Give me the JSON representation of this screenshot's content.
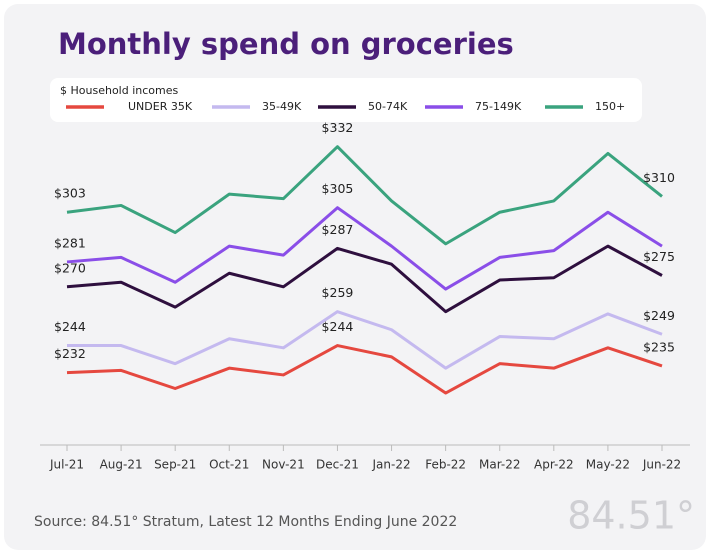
{
  "chart_data": {
    "type": "line",
    "title": "Monthly spend on groceries",
    "legend_title": "$ Household incomes",
    "categories": [
      "Jul-21",
      "Aug-21",
      "Sep-21",
      "Oct-21",
      "Nov-21",
      "Dec-21",
      "Jan-22",
      "Feb-22",
      "Mar-22",
      "Apr-22",
      "May-22",
      "Jun-22"
    ],
    "ylim": [
      200,
      340
    ],
    "series": [
      {
        "name": "UNDER 35K",
        "color": "#e5483f",
        "values": [
          232,
          233,
          225,
          234,
          231,
          244,
          239,
          223,
          236,
          234,
          243,
          235
        ],
        "value_labels": [
          "$232",
          null,
          null,
          null,
          null,
          "$244",
          null,
          null,
          null,
          null,
          null,
          "$235"
        ]
      },
      {
        "name": "35-49K",
        "color": "#c4b9ef",
        "values": [
          244,
          244,
          236,
          247,
          243,
          259,
          251,
          234,
          248,
          247,
          258,
          249
        ],
        "value_labels": [
          "$244",
          null,
          null,
          null,
          null,
          "$259",
          null,
          null,
          null,
          null,
          null,
          "$249"
        ]
      },
      {
        "name": "50-74K",
        "color": "#2e0f3e",
        "values": [
          270,
          272,
          261,
          276,
          270,
          287,
          280,
          259,
          273,
          274,
          288,
          275
        ],
        "value_labels": [
          "$270",
          null,
          null,
          null,
          null,
          "$287",
          null,
          null,
          null,
          null,
          null,
          "$275"
        ]
      },
      {
        "name": "75-149K",
        "color": "#8a4ee8",
        "values": [
          281,
          283,
          272,
          288,
          284,
          305,
          288,
          269,
          283,
          286,
          303,
          288
        ],
        "value_labels": [
          "$281",
          null,
          null,
          null,
          null,
          "$305",
          null,
          null,
          null,
          null,
          null,
          null
        ]
      },
      {
        "name": "150+",
        "color": "#3aa37e",
        "values": [
          303,
          306,
          294,
          311,
          309,
          332,
          308,
          289,
          303,
          308,
          329,
          310
        ],
        "value_labels": [
          "$303",
          null,
          null,
          null,
          null,
          "$332",
          null,
          null,
          null,
          null,
          null,
          "$310"
        ]
      }
    ],
    "source": "Source: 84.51° Stratum, Latest 12 Months Ending June 2022",
    "logo": "84.51°"
  }
}
